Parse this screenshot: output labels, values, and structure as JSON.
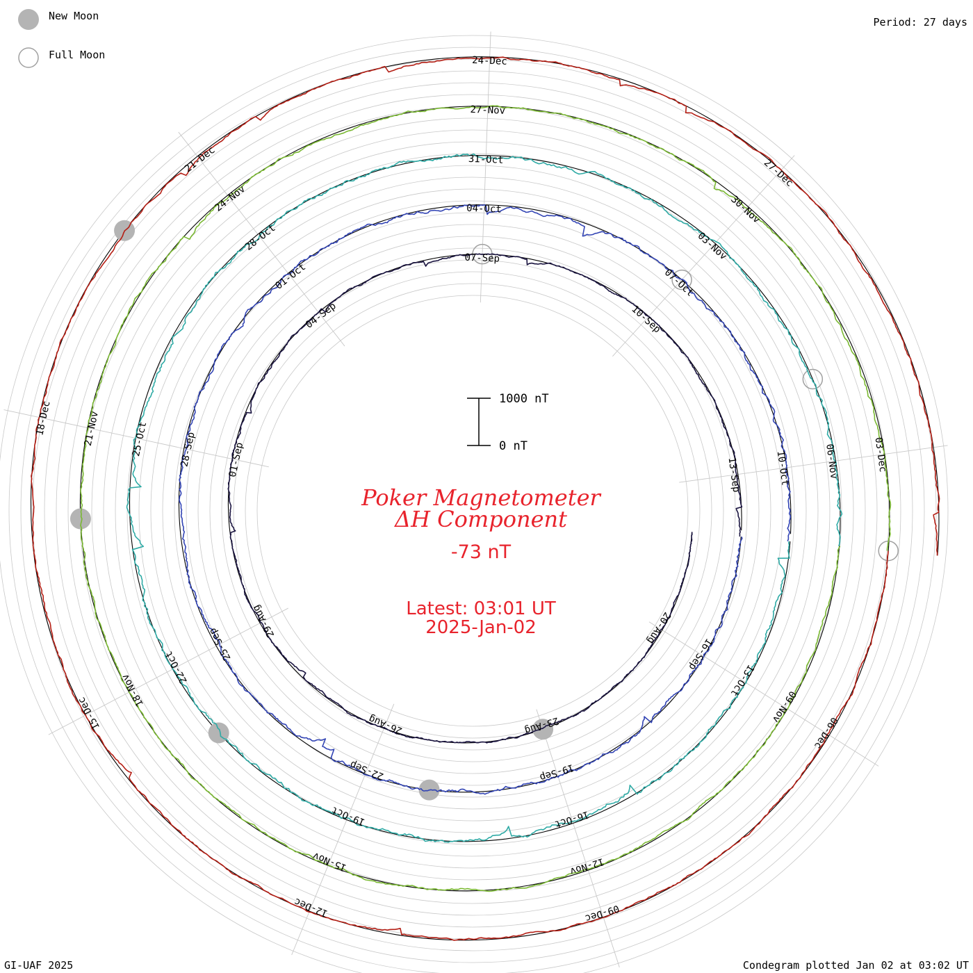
{
  "title": "Poker Magnetometer",
  "subtitle": "ΔH Component",
  "current_value": "-73 nT",
  "latest_line1": "Latest: 03:01 UT",
  "latest_line2": "2025-Jan-02",
  "period_label": "Period: 27 days",
  "legend": {
    "new_moon": "New Moon",
    "full_moon": "Full Moon"
  },
  "scale_bar": {
    "top_label": "1000 nT",
    "bottom_label": "0 nT"
  },
  "footer_left": "GI-UAF 2025",
  "footer_right": "Condegram plotted Jan 02 at 03:02 UT",
  "colors": {
    "annotation": "#e8232c",
    "grid": "#c8c8c8",
    "moon_new": "#b4b4b4",
    "moon_full": "#a0a0a0"
  },
  "chart_data": {
    "type": "line",
    "plot_style": "spiral condegram",
    "period_days": 27,
    "series": [
      {
        "start": "2025-08-18",
        "days": 27,
        "color": "#1a1440",
        "noise": 0.3,
        "date_labels": [
          "20-Aug",
          "23-Aug",
          "26-Aug",
          "29-Aug",
          "01-Sep",
          "04-Sep",
          "07-Sep",
          "10-Sep",
          "13-Sep"
        ]
      },
      {
        "start": "2025-09-14",
        "days": 27,
        "color": "#3244b4",
        "noise": 0.55,
        "date_labels": [
          "16-Sep",
          "19-Sep",
          "22-Sep",
          "25-Sep",
          "28-Sep",
          "01-Oct",
          "04-Oct",
          "07-Oct",
          "10-Oct"
        ]
      },
      {
        "start": "2025-10-11",
        "days": 27,
        "color": "#2eaaa5",
        "noise": 0.6,
        "date_labels": [
          "13-Oct",
          "16-Oct",
          "19-Oct",
          "22-Oct",
          "25-Oct",
          "28-Oct",
          "31-Oct",
          "03-Nov",
          "06-Nov"
        ]
      },
      {
        "start": "2025-11-07",
        "days": 27,
        "color": "#7ab832",
        "noise": 0.4,
        "date_labels": [
          "09-Nov",
          "12-Nov",
          "15-Nov",
          "18-Nov",
          "21-Nov",
          "24-Nov",
          "27-Nov",
          "30-Nov",
          "03-Dec"
        ]
      },
      {
        "start": "2025-12-04",
        "days": 27,
        "color": "#b41e14",
        "noise": 0.35,
        "date_labels": [
          "06-Dec",
          "09-Dec",
          "12-Dec",
          "15-Dec",
          "18-Dec",
          "21-Dec",
          "24-Dec",
          "27-Dec"
        ]
      }
    ],
    "scale": {
      "min_nT": 0,
      "max_nT": 1000
    },
    "new_moons": [
      "2025-08-23",
      "2025-09-21",
      "2025-10-21",
      "2025-11-20",
      "2025-12-20"
    ],
    "full_moons": [
      "2025-09-07",
      "2025-10-07",
      "2025-11-05",
      "2025-12-04"
    ]
  }
}
